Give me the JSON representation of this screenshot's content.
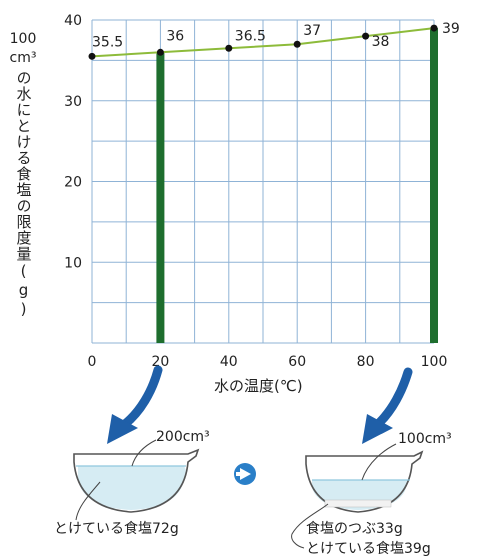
{
  "chart_data": {
    "type": "line",
    "x": [
      0,
      20,
      40,
      60,
      80,
      100
    ],
    "y": [
      35.5,
      36,
      36.5,
      37,
      38,
      39
    ],
    "data_labels": [
      "35.5",
      "36",
      "36.5",
      "37",
      "38",
      "39"
    ],
    "highlight_bars": [
      {
        "x": 20,
        "value": 36
      },
      {
        "x": 100,
        "value": 39
      }
    ],
    "xlim": [
      0,
      100
    ],
    "ylim": [
      0,
      40
    ],
    "x_ticks": [
      "0",
      "20",
      "40",
      "60",
      "80",
      "100"
    ],
    "y_ticks": [
      "10",
      "20",
      "30",
      "40"
    ],
    "xlabel": "水の温度(℃)",
    "ylabel_unit": "100 cm³",
    "ylabel_text": "の水にとける食塩の限度量(g)",
    "grid": true,
    "colors": {
      "line": "#8dbb3a",
      "grid": "#8fb3d6",
      "bar": "#1e6e2e",
      "arrow": "#1f5fa8",
      "water": "#d6ecf3",
      "next_arrow": "#2a7fc8"
    }
  },
  "diagram": {
    "left_bowl": {
      "volume": "200cm³",
      "caption": "とけている食塩72g"
    },
    "right_bowl": {
      "volume": "100cm³",
      "caption_residue": "食塩のつぶ33g",
      "caption_dissolved": "とけている食塩39g"
    }
  }
}
